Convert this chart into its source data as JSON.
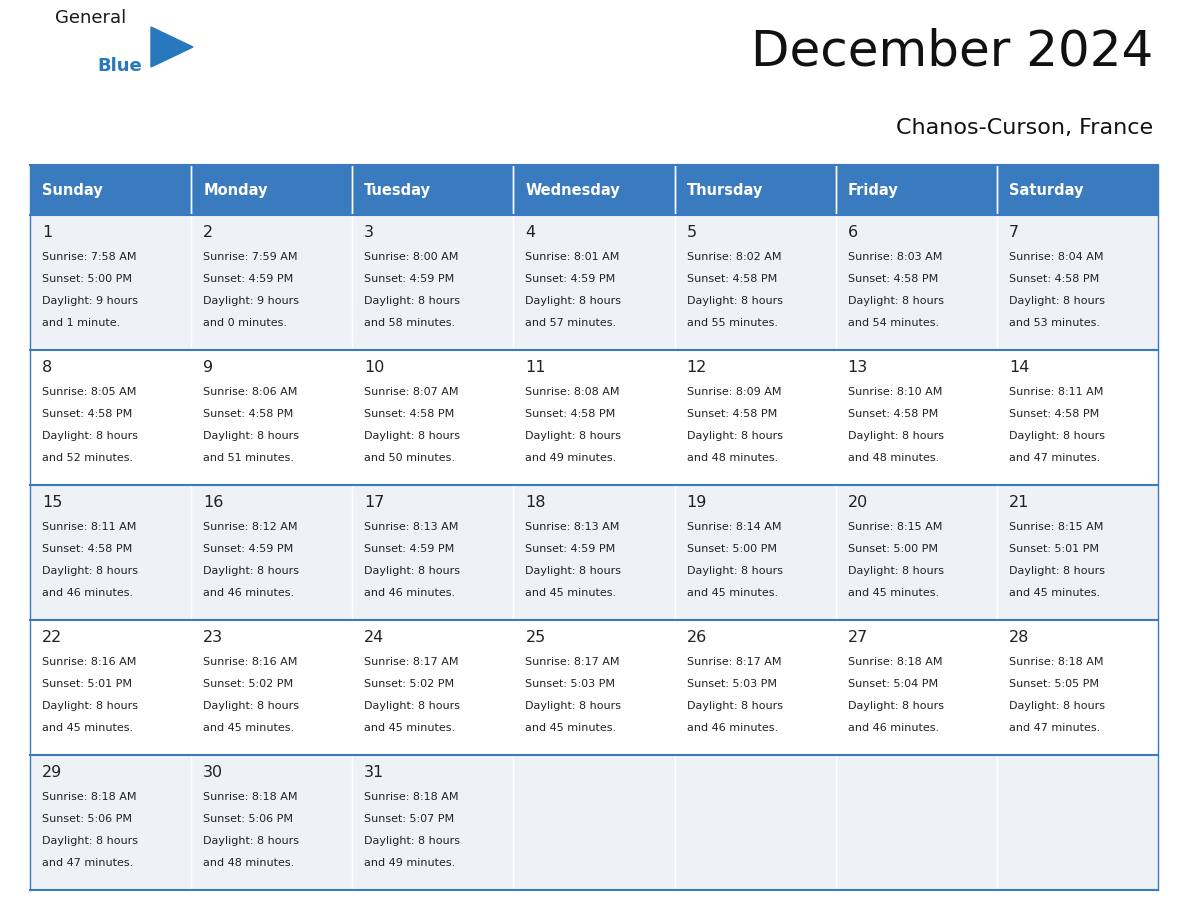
{
  "title": "December 2024",
  "subtitle": "Chanos-Curson, France",
  "days_of_week": [
    "Sunday",
    "Monday",
    "Tuesday",
    "Wednesday",
    "Thursday",
    "Friday",
    "Saturday"
  ],
  "header_bg": "#3a7abf",
  "header_text": "#ffffff",
  "row_bg_odd": "#eef2f7",
  "row_bg_even": "#ffffff",
  "cell_text": "#222222",
  "grid_line": "#3a7abf",
  "logo_general_color": "#1a1a1a",
  "logo_blue_color": "#2878be",
  "weeks": [
    [
      {
        "day": 1,
        "sunrise": "7:58 AM",
        "sunset": "5:00 PM",
        "daylight": "9 hours",
        "daylight2": "and 1 minute."
      },
      {
        "day": 2,
        "sunrise": "7:59 AM",
        "sunset": "4:59 PM",
        "daylight": "9 hours",
        "daylight2": "and 0 minutes."
      },
      {
        "day": 3,
        "sunrise": "8:00 AM",
        "sunset": "4:59 PM",
        "daylight": "8 hours",
        "daylight2": "and 58 minutes."
      },
      {
        "day": 4,
        "sunrise": "8:01 AM",
        "sunset": "4:59 PM",
        "daylight": "8 hours",
        "daylight2": "and 57 minutes."
      },
      {
        "day": 5,
        "sunrise": "8:02 AM",
        "sunset": "4:58 PM",
        "daylight": "8 hours",
        "daylight2": "and 55 minutes."
      },
      {
        "day": 6,
        "sunrise": "8:03 AM",
        "sunset": "4:58 PM",
        "daylight": "8 hours",
        "daylight2": "and 54 minutes."
      },
      {
        "day": 7,
        "sunrise": "8:04 AM",
        "sunset": "4:58 PM",
        "daylight": "8 hours",
        "daylight2": "and 53 minutes."
      }
    ],
    [
      {
        "day": 8,
        "sunrise": "8:05 AM",
        "sunset": "4:58 PM",
        "daylight": "8 hours",
        "daylight2": "and 52 minutes."
      },
      {
        "day": 9,
        "sunrise": "8:06 AM",
        "sunset": "4:58 PM",
        "daylight": "8 hours",
        "daylight2": "and 51 minutes."
      },
      {
        "day": 10,
        "sunrise": "8:07 AM",
        "sunset": "4:58 PM",
        "daylight": "8 hours",
        "daylight2": "and 50 minutes."
      },
      {
        "day": 11,
        "sunrise": "8:08 AM",
        "sunset": "4:58 PM",
        "daylight": "8 hours",
        "daylight2": "and 49 minutes."
      },
      {
        "day": 12,
        "sunrise": "8:09 AM",
        "sunset": "4:58 PM",
        "daylight": "8 hours",
        "daylight2": "and 48 minutes."
      },
      {
        "day": 13,
        "sunrise": "8:10 AM",
        "sunset": "4:58 PM",
        "daylight": "8 hours",
        "daylight2": "and 48 minutes."
      },
      {
        "day": 14,
        "sunrise": "8:11 AM",
        "sunset": "4:58 PM",
        "daylight": "8 hours",
        "daylight2": "and 47 minutes."
      }
    ],
    [
      {
        "day": 15,
        "sunrise": "8:11 AM",
        "sunset": "4:58 PM",
        "daylight": "8 hours",
        "daylight2": "and 46 minutes."
      },
      {
        "day": 16,
        "sunrise": "8:12 AM",
        "sunset": "4:59 PM",
        "daylight": "8 hours",
        "daylight2": "and 46 minutes."
      },
      {
        "day": 17,
        "sunrise": "8:13 AM",
        "sunset": "4:59 PM",
        "daylight": "8 hours",
        "daylight2": "and 46 minutes."
      },
      {
        "day": 18,
        "sunrise": "8:13 AM",
        "sunset": "4:59 PM",
        "daylight": "8 hours",
        "daylight2": "and 45 minutes."
      },
      {
        "day": 19,
        "sunrise": "8:14 AM",
        "sunset": "5:00 PM",
        "daylight": "8 hours",
        "daylight2": "and 45 minutes."
      },
      {
        "day": 20,
        "sunrise": "8:15 AM",
        "sunset": "5:00 PM",
        "daylight": "8 hours",
        "daylight2": "and 45 minutes."
      },
      {
        "day": 21,
        "sunrise": "8:15 AM",
        "sunset": "5:01 PM",
        "daylight": "8 hours",
        "daylight2": "and 45 minutes."
      }
    ],
    [
      {
        "day": 22,
        "sunrise": "8:16 AM",
        "sunset": "5:01 PM",
        "daylight": "8 hours",
        "daylight2": "and 45 minutes."
      },
      {
        "day": 23,
        "sunrise": "8:16 AM",
        "sunset": "5:02 PM",
        "daylight": "8 hours",
        "daylight2": "and 45 minutes."
      },
      {
        "day": 24,
        "sunrise": "8:17 AM",
        "sunset": "5:02 PM",
        "daylight": "8 hours",
        "daylight2": "and 45 minutes."
      },
      {
        "day": 25,
        "sunrise": "8:17 AM",
        "sunset": "5:03 PM",
        "daylight": "8 hours",
        "daylight2": "and 45 minutes."
      },
      {
        "day": 26,
        "sunrise": "8:17 AM",
        "sunset": "5:03 PM",
        "daylight": "8 hours",
        "daylight2": "and 46 minutes."
      },
      {
        "day": 27,
        "sunrise": "8:18 AM",
        "sunset": "5:04 PM",
        "daylight": "8 hours",
        "daylight2": "and 46 minutes."
      },
      {
        "day": 28,
        "sunrise": "8:18 AM",
        "sunset": "5:05 PM",
        "daylight": "8 hours",
        "daylight2": "and 47 minutes."
      }
    ],
    [
      {
        "day": 29,
        "sunrise": "8:18 AM",
        "sunset": "5:06 PM",
        "daylight": "8 hours",
        "daylight2": "and 47 minutes."
      },
      {
        "day": 30,
        "sunrise": "8:18 AM",
        "sunset": "5:06 PM",
        "daylight": "8 hours",
        "daylight2": "and 48 minutes."
      },
      {
        "day": 31,
        "sunrise": "8:18 AM",
        "sunset": "5:07 PM",
        "daylight": "8 hours",
        "daylight2": "and 49 minutes."
      },
      null,
      null,
      null,
      null
    ]
  ],
  "fig_width": 11.88,
  "fig_height": 9.18,
  "dpi": 100
}
